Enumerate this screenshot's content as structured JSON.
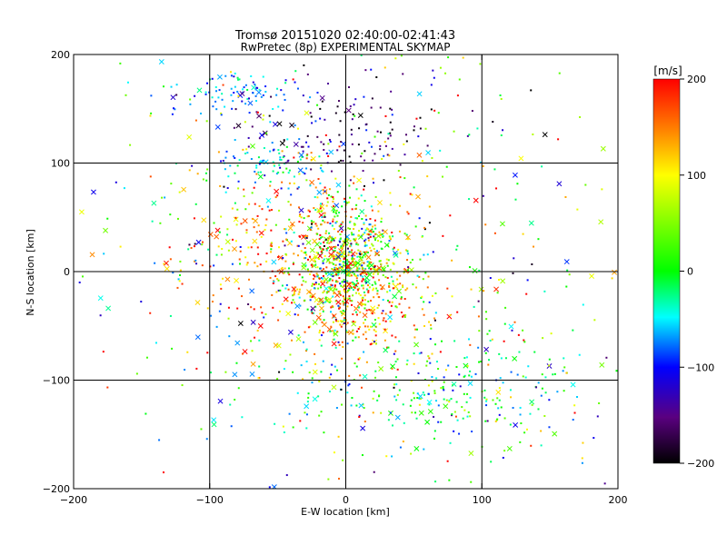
{
  "chart_data": {
    "type": "scatter",
    "title": "Tromsø 20151020 02:40:00-02:41:43",
    "subtitle": "RwPretec (8p) EXPERIMENTAL SKYMAP",
    "xlabel": "E-W location [km]",
    "ylabel": "N-S location [km]",
    "xlim": [
      -200,
      200
    ],
    "ylim": [
      -200,
      200
    ],
    "x_ticks": [
      -200,
      -100,
      0,
      100,
      200
    ],
    "y_ticks": [
      -200,
      -100,
      0,
      100,
      200
    ],
    "x_tick_labels": [
      "−200",
      "−100",
      "0",
      "100",
      "200"
    ],
    "y_tick_labels": [
      "−200",
      "−100",
      "0",
      "100",
      "200"
    ],
    "grid": true,
    "colorbar": {
      "label": "[m/s]",
      "range": [
        -200,
        200
      ],
      "ticks": [
        200,
        100,
        0,
        -100,
        -200
      ],
      "tick_labels": [
        "200",
        "100",
        "0",
        "−100",
        "−200"
      ],
      "colormap": [
        "#000000",
        "#5a0080",
        "#0000ff",
        "#00ffff",
        "#00ff00",
        "#ffff00",
        "#ff8000",
        "#ff0000"
      ]
    },
    "markers": {
      "x": "cross (large)",
      "dot": "small point"
    },
    "series": [
      {
        "clusters": [
          {
            "cx": 0,
            "cy": 10,
            "sx": 18,
            "sy": 28,
            "n": 650,
            "vmean": 40,
            "vsd": 90
          },
          {
            "cx": -40,
            "cy": 20,
            "sx": 35,
            "sy": 45,
            "n": 260,
            "vmean": 150,
            "vsd": 50
          },
          {
            "cx": 20,
            "cy": -30,
            "sx": 25,
            "sy": 30,
            "n": 180,
            "vmean": 150,
            "vsd": 40
          },
          {
            "cx": -70,
            "cy": 165,
            "sx": 25,
            "sy": 10,
            "n": 90,
            "vmean": -70,
            "vsd": 25
          },
          {
            "cx": 0,
            "cy": 130,
            "sx": 35,
            "sy": 20,
            "n": 120,
            "vmean": -160,
            "vsd": 40
          },
          {
            "cx": -50,
            "cy": 100,
            "sx": 25,
            "sy": 10,
            "n": 90,
            "vmean": -60,
            "vsd": 40
          },
          {
            "cx": 70,
            "cy": -110,
            "sx": 60,
            "sy": 25,
            "n": 260,
            "vmean": -20,
            "vsd": 50
          },
          {
            "cx": 0,
            "cy": 0,
            "sx": 110,
            "sy": 110,
            "n": 650,
            "vmean": 20,
            "vsd": 120
          }
        ]
      }
    ]
  }
}
